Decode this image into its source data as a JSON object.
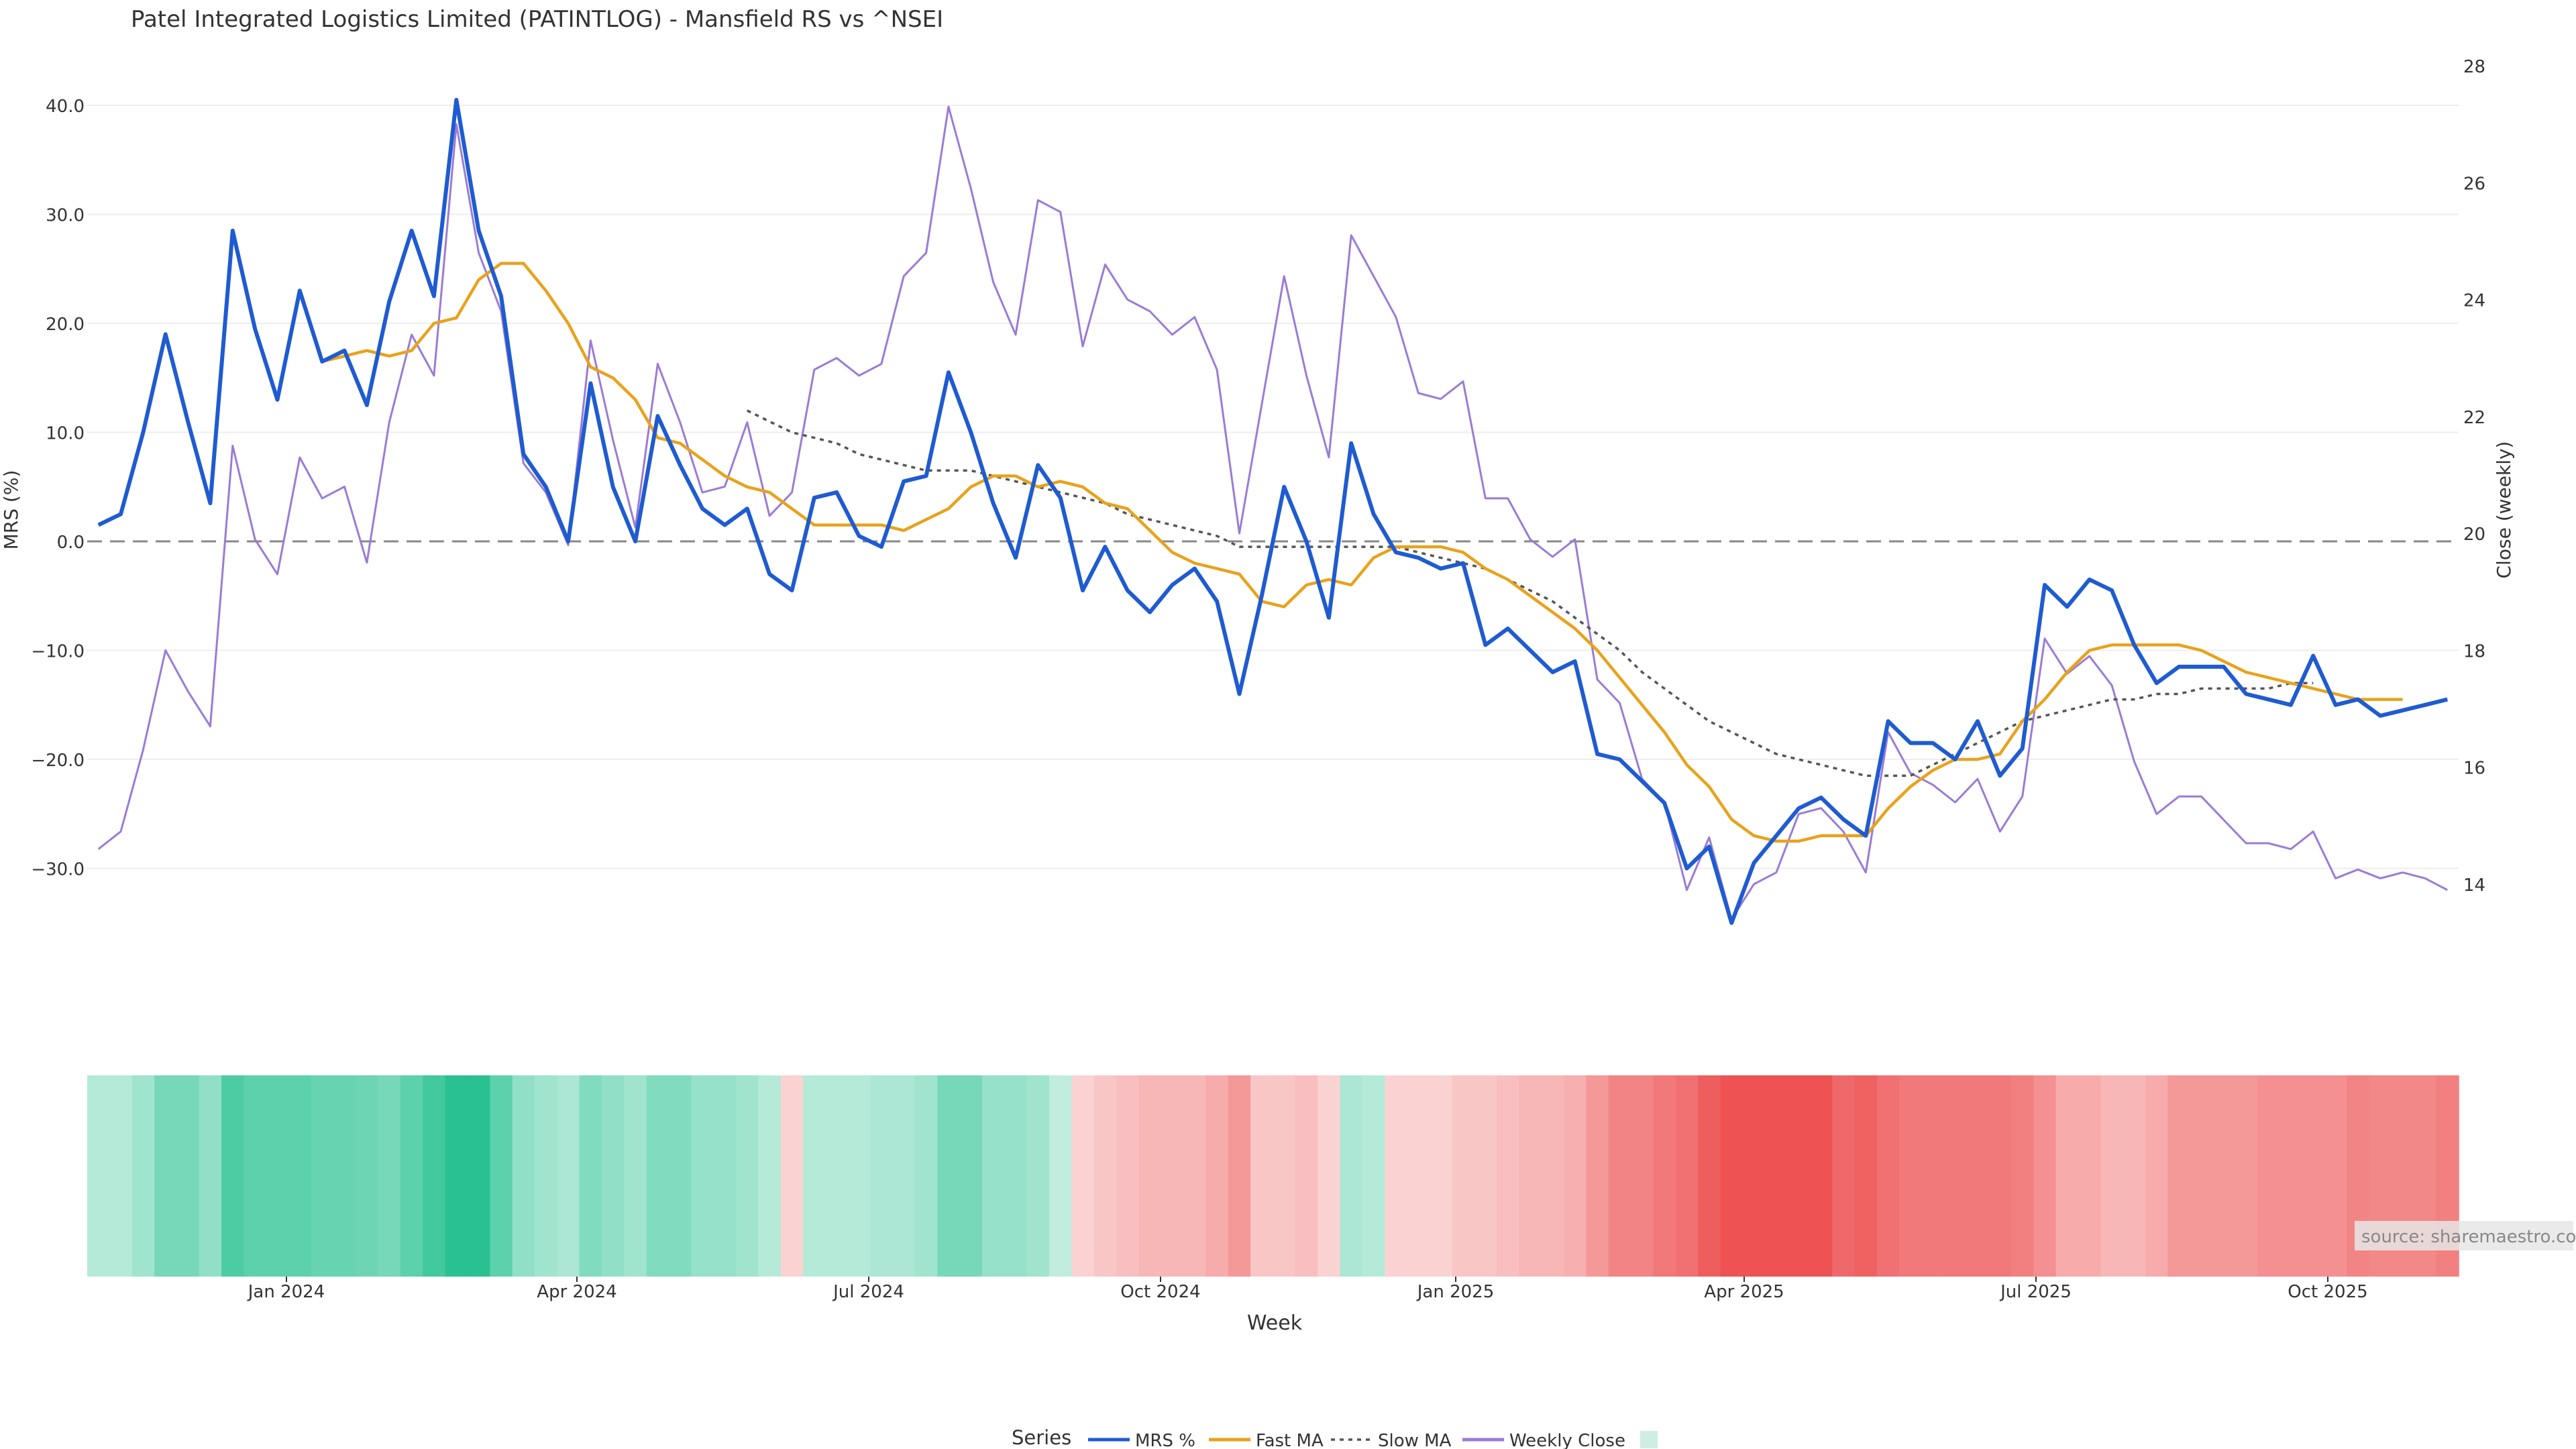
{
  "title": "Patel Integrated Logistics Limited (PATINTLOG) - Mansfield RS vs ^NSEI",
  "source_label": "source: sharemaestro.com",
  "legend": {
    "title": "Series",
    "items": [
      {
        "label": "MRS %",
        "color": "#1f5bd1",
        "style": "solid"
      },
      {
        "label": "Fast MA",
        "color": "#e8a21c",
        "style": "solid"
      },
      {
        "label": "Slow MA",
        "color": "#555555",
        "style": "dotted"
      },
      {
        "label": "Weekly Close",
        "color": "#9b7bd6",
        "style": "solid"
      },
      {
        "label": "",
        "color": "#cfeee2",
        "style": "swatch"
      }
    ]
  },
  "chart_data": {
    "type": "line",
    "x_label": "Week",
    "y_label_left": "MRS (%)",
    "y_label_right": "Close (weekly)",
    "y_left_ticks": [
      "40.0",
      "30.0",
      "20.0",
      "10.0",
      "0.0",
      "−10.0",
      "−20.0",
      "−30.0"
    ],
    "y_right_ticks": [
      "28",
      "26",
      "24",
      "22",
      "20",
      "18",
      "16",
      "14"
    ],
    "x_ticks": [
      "Jan 2024",
      "Apr 2024",
      "Jul 2024",
      "Oct 2024",
      "Jan 2025",
      "Apr 2025",
      "Jul 2025",
      "Oct 2025"
    ],
    "y_left_range": [
      -35,
      42
    ],
    "y_right_range": [
      13.0,
      28.0
    ],
    "zero_line": 0,
    "colors": {
      "mrs": "#1f5bd1",
      "fast": "#e8a21c",
      "slow": "#555555",
      "close": "#9b7bd6"
    },
    "series": [
      {
        "name": "MRS %",
        "axis": "left",
        "values": [
          1.5,
          2.5,
          10,
          19,
          11,
          3.5,
          28.5,
          19.5,
          13,
          23,
          16.5,
          17.5,
          12.5,
          22,
          28.5,
          22.5,
          40.5,
          28.5,
          22.5,
          8,
          5,
          0,
          14.5,
          5,
          0,
          11.5,
          7,
          3,
          1.5,
          3,
          -3,
          -4.5,
          4,
          4.5,
          0.5,
          -0.5,
          5.5,
          6,
          15.5,
          10,
          3.5,
          -1.5,
          7,
          4,
          -4.5,
          -0.5,
          -4.5,
          -6.5,
          -4,
          -2.5,
          -5.5,
          -14,
          -5,
          5,
          0,
          -7,
          9,
          2.5,
          -1,
          -1.5,
          -2.5,
          -2,
          -9.5,
          -8,
          -10,
          -12,
          -11,
          -19.5,
          -20,
          -22,
          -24,
          -30,
          -28,
          -35,
          -29.5,
          -27,
          -24.5,
          -23.5,
          -25.5,
          -27,
          -16.5,
          -18.5,
          -18.5,
          -20,
          -16.5,
          -21.5,
          -19,
          -4,
          -6,
          -3.5,
          -4.5,
          -9.5,
          -13,
          -11.5,
          -11.5,
          -11.5,
          -14,
          -14.5,
          -15,
          -10.5,
          -15,
          -14.5,
          -16,
          -15.5,
          -15,
          -14.5
        ]
      },
      {
        "name": "Fast MA",
        "axis": "left",
        "start_index": 10,
        "values": [
          16.5,
          17,
          17.5,
          17,
          17.5,
          20,
          20.5,
          24,
          25.5,
          25.5,
          23,
          20,
          16,
          15,
          13,
          9.5,
          9,
          7.5,
          6,
          5,
          4.5,
          3,
          1.5,
          1.5,
          1.5,
          1.5,
          1,
          2,
          3,
          5,
          6,
          6,
          5,
          5.5,
          5,
          3.5,
          3,
          1,
          -1,
          -2,
          -2.5,
          -3,
          -5.5,
          -6,
          -4,
          -3.5,
          -4,
          -1.5,
          -0.5,
          -0.5,
          -0.5,
          -1,
          -2.5,
          -3.5,
          -5,
          -6.5,
          -8,
          -10,
          -12.5,
          -15,
          -17.5,
          -20.5,
          -22.5,
          -25.5,
          -27,
          -27.5,
          -27.5,
          -27,
          -27,
          -27,
          -24.5,
          -22.5,
          -21,
          -20,
          -20,
          -19.5,
          -16.5,
          -14.5,
          -12,
          -10,
          -9.5,
          -9.5,
          -9.5,
          -9.5,
          -10,
          -11,
          -12,
          -12.5,
          -13,
          -13.5,
          -14,
          -14.5,
          -14.5,
          -14.5
        ]
      },
      {
        "name": "Slow MA",
        "axis": "left",
        "start_index": 29,
        "values": [
          12,
          11,
          10,
          9.5,
          9,
          8,
          7.5,
          7,
          6.5,
          6.5,
          6.5,
          6,
          5.5,
          5,
          4.5,
          4,
          3.5,
          2.5,
          2,
          1.5,
          1,
          0.5,
          -0.5,
          -0.5,
          -0.5,
          -0.5,
          -0.5,
          -0.5,
          -0.5,
          -0.5,
          -1,
          -1.5,
          -2,
          -2.5,
          -3.5,
          -4.5,
          -5.5,
          -7,
          -8.5,
          -10,
          -12,
          -13.5,
          -15,
          -16.5,
          -17.5,
          -18.5,
          -19.5,
          -20,
          -20.5,
          -21,
          -21.5,
          -21.5,
          -21.5,
          -20.5,
          -19.5,
          -18.5,
          -17.5,
          -16.5,
          -16,
          -15.5,
          -15,
          -14.5,
          -14.5,
          -14,
          -14,
          -13.5,
          -13.5,
          -13.5,
          -13.5,
          -13,
          -13
        ]
      },
      {
        "name": "Weekly Close",
        "axis": "right",
        "values": [
          14.6,
          14.9,
          16.3,
          18.0,
          17.3,
          16.7,
          21.5,
          19.9,
          19.3,
          21.3,
          20.6,
          20.8,
          19.5,
          21.9,
          23.4,
          22.7,
          27.0,
          24.8,
          23.8,
          21.2,
          20.7,
          19.8,
          23.3,
          21.6,
          20.1,
          22.9,
          21.9,
          20.7,
          20.8,
          21.9,
          20.3,
          20.7,
          22.8,
          23.0,
          22.7,
          22.9,
          24.4,
          24.8,
          27.3,
          25.9,
          24.3,
          23.4,
          25.7,
          25.5,
          23.2,
          24.6,
          24.0,
          23.8,
          23.4,
          23.7,
          22.8,
          20.0,
          22.2,
          24.4,
          22.7,
          21.3,
          25.1,
          24.4,
          23.7,
          22.4,
          22.3,
          22.6,
          20.6,
          20.6,
          19.9,
          19.6,
          19.9,
          17.5,
          17.1,
          15.8,
          15.4,
          13.9,
          14.8,
          13.4,
          14.0,
          14.2,
          15.2,
          15.3,
          14.9,
          14.2,
          16.6,
          15.9,
          15.7,
          15.4,
          15.8,
          14.9,
          15.5,
          18.2,
          17.6,
          17.9,
          17.4,
          16.1,
          15.2,
          15.5,
          15.5,
          15.1,
          14.7,
          14.7,
          14.6,
          14.9,
          14.1,
          14.25,
          14.1,
          14.2,
          14.1,
          13.9
        ]
      }
    ],
    "heat_strip": {
      "scale": "MRS %",
      "values": [
        8,
        8,
        12,
        20,
        20,
        15,
        28,
        25,
        25,
        25,
        23,
        23,
        22,
        20,
        25,
        30,
        35,
        35,
        25,
        15,
        12,
        10,
        18,
        15,
        12,
        18,
        18,
        14,
        14,
        12,
        8,
        -5,
        8,
        8,
        8,
        10,
        10,
        12,
        20,
        20,
        14,
        14,
        12,
        6,
        -5,
        -8,
        -10,
        -12,
        -12,
        -12,
        -15,
        -20,
        -8,
        -8,
        -10,
        -5,
        10,
        8,
        -5,
        -5,
        -5,
        -8,
        -8,
        -10,
        -12,
        -12,
        -14,
        -20,
        -25,
        -25,
        -28,
        -30,
        -35,
        -38,
        -38,
        -38,
        -38,
        -38,
        -32,
        -34,
        -30,
        -28,
        -28,
        -28,
        -28,
        -28,
        -26,
        -22,
        -15,
        -15,
        -12,
        -12,
        -15,
        -20,
        -20,
        -20,
        -20,
        -22,
        -22,
        -22,
        -22,
        -25,
        -24,
        -24,
        -24,
        -26
      ]
    }
  }
}
